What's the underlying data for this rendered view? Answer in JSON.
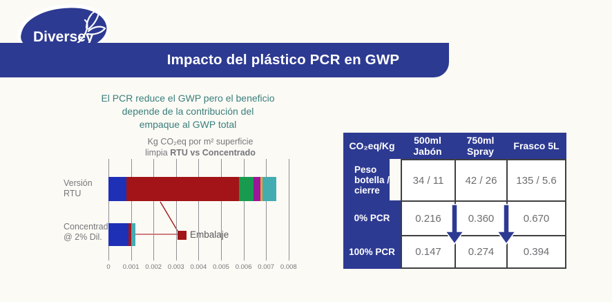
{
  "logo": {
    "brand": "Diversey",
    "trademark": "™"
  },
  "header": {
    "title": "Impacto del plástico PCR en GWP"
  },
  "chart": {
    "title_lines": [
      "El PCR reduce el GWP pero el beneficio",
      "depende de la contribución del",
      "empaque al GWP total"
    ],
    "subtitle_line1": "Kg CO₂eq por m² superficie",
    "subtitle_line2_regular": "limpia ",
    "subtitle_line2_bold": "RTU vs Concentrado",
    "annotation_label": "Embalaje"
  },
  "chart_data": {
    "type": "bar",
    "orientation": "horizontal",
    "stacked": true,
    "title": "Kg CO₂eq por m² superficie limpia RTU vs Concentrado",
    "categories": [
      "Versión RTU",
      "Concentrado @ 2% Dil."
    ],
    "series": [
      {
        "name": "unlabeled-blue",
        "color": "#1e30b5",
        "values": [
          0.0008,
          0.0009
        ]
      },
      {
        "name": "Embalaje",
        "color": "#a21418",
        "values": [
          0.005,
          0.0001
        ]
      },
      {
        "name": "unlabeled-green",
        "color": "#189b4e",
        "values": [
          0.00065,
          0
        ]
      },
      {
        "name": "unlabeled-purple",
        "color": "#9a169b",
        "values": [
          0.0003,
          0
        ]
      },
      {
        "name": "unlabeled-orange",
        "color": "#f09e24",
        "values": [
          0.0001,
          0
        ]
      },
      {
        "name": "unlabeled-teal",
        "color": "#43acb1",
        "values": [
          0.0006,
          0.0002
        ]
      }
    ],
    "xlim": [
      0,
      0.008
    ],
    "xticks": [
      "0",
      "0.001",
      "0.002",
      "0.003",
      "0.004",
      "0.005",
      "0.006",
      "0.007",
      "0.008"
    ],
    "grid": "vertical",
    "legend_position": "annotation callout to red segments"
  },
  "table": {
    "header": [
      "CO₂eq/Kg",
      "500ml\nJabón",
      "750ml\nSpray",
      "Frasco 5L"
    ],
    "rows": [
      {
        "label": "Peso botella / cierre",
        "values": [
          "34 / 11",
          "42 / 26",
          "135 / 5.6"
        ]
      },
      {
        "label": "0% PCR",
        "values": [
          "0.216",
          "0.360",
          "0.670"
        ]
      },
      {
        "label": "100% PCR",
        "values": [
          "0.147",
          "0.274",
          "0.394"
        ]
      }
    ],
    "arrow_color": "#2d3a92"
  },
  "colors": {
    "brand_blue": "#2d3a92",
    "title_teal": "#3a7e7c",
    "text_gray": "#76767a",
    "embalaje_red": "#a21418"
  }
}
